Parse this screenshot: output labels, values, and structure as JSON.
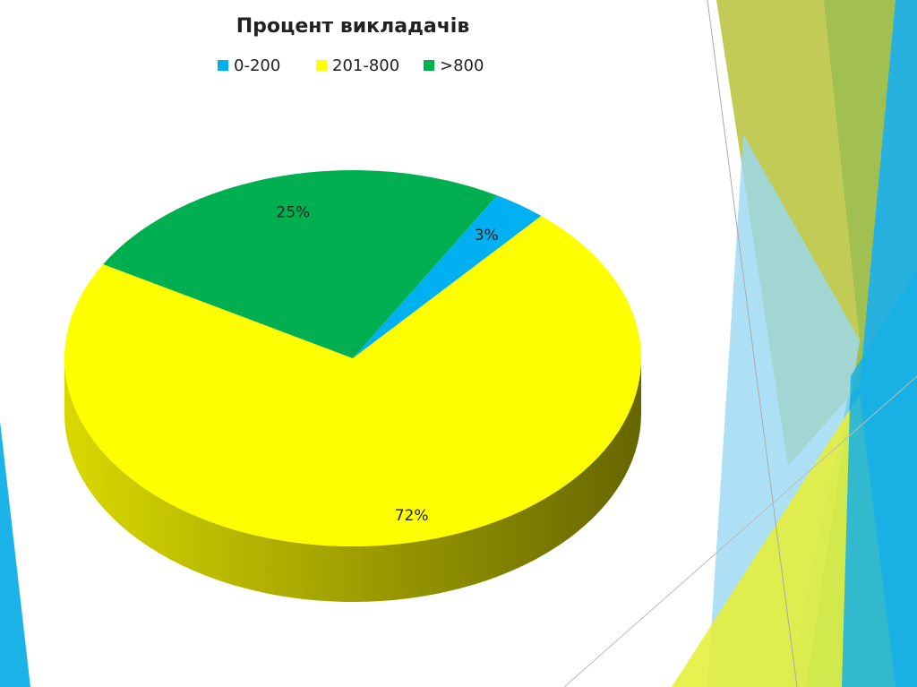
{
  "chart_data": {
    "type": "pie",
    "title": "Процент викладачів",
    "categories": [
      "0-200",
      "201-800",
      ">800"
    ],
    "values": [
      3,
      72,
      25
    ],
    "value_labels": [
      "3%",
      "72%",
      "25%"
    ],
    "colors": [
      "#00b0f0",
      "#ffff00",
      "#00b050"
    ],
    "legend": "top"
  }
}
